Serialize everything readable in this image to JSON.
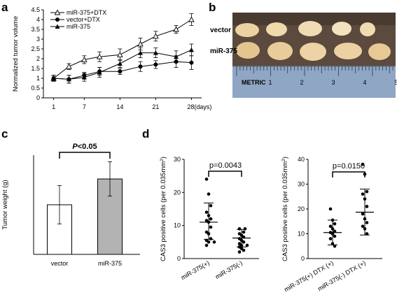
{
  "panels": {
    "a": "a",
    "b": "b",
    "c": "c",
    "d": "d"
  },
  "photo": {
    "row1_label": "vector",
    "row2_label": "miR-375",
    "ruler_text": "METRIC",
    "ruler_numbers": [
      "1",
      "2",
      "3",
      "4",
      "5"
    ],
    "colors": {
      "background": "#5b4a3d",
      "tumor": "#ecd2a3",
      "ruler": "#8fa6c4"
    }
  },
  "chart_data": [
    {
      "id": "a",
      "type": "line",
      "ylabel": "Normalized tumor volume",
      "xlabel": "",
      "x": [
        1,
        4,
        7,
        10,
        14,
        18,
        21,
        25,
        28
      ],
      "xticks": [
        "1",
        "7",
        "14",
        "21",
        "28(days)"
      ],
      "xtick_values": [
        1,
        7,
        14,
        21,
        28
      ],
      "yticks": [
        "0",
        "0.5",
        "1",
        "1.5",
        "2",
        "2.5",
        "3",
        "3.5",
        "4",
        "4.5"
      ],
      "xlim": [
        -1,
        30
      ],
      "ylim": [
        0,
        4.5
      ],
      "series": [
        {
          "name": "miR-375+DTX",
          "marker": "triangle-open",
          "values": [
            1.0,
            1.6,
            1.95,
            2.1,
            2.2,
            2.75,
            3.15,
            3.5,
            4.0
          ],
          "errors": [
            0.15,
            0.15,
            0.2,
            0.25,
            0.3,
            0.3,
            0.25,
            0.2,
            0.3
          ]
        },
        {
          "name": "vector+DTX",
          "marker": "circle",
          "values": [
            1.0,
            0.95,
            1.15,
            1.35,
            1.35,
            1.6,
            1.7,
            1.85,
            1.8
          ],
          "errors": [
            0.15,
            0.2,
            0.15,
            0.2,
            0.15,
            0.25,
            0.2,
            0.3,
            0.35
          ]
        },
        {
          "name": "miR-375",
          "marker": "triangle",
          "values": [
            1.0,
            0.95,
            1.05,
            1.3,
            1.75,
            2.3,
            2.3,
            2.1,
            2.45
          ],
          "errors": [
            0.15,
            0.2,
            0.2,
            0.25,
            0.2,
            0.25,
            0.25,
            0.3,
            0.3
          ]
        }
      ]
    },
    {
      "id": "c",
      "type": "bar",
      "ylabel": "Tumor weight (g)",
      "categories": [
        "vector",
        "miR-375"
      ],
      "values": [
        0.15,
        0.228
      ],
      "errors": [
        0.058,
        0.052
      ],
      "ylim": [
        0,
        0.3
      ],
      "colors": [
        "#ffffff",
        "#b3b3b3"
      ],
      "annotation": {
        "italic": "P",
        "text": "<0.05"
      }
    },
    {
      "id": "d1",
      "type": "scatter",
      "ylabel": "CAS3 positive cells (per 0.035mm",
      "ylabel_sup": "2",
      "ylabel_end": ")",
      "categories": [
        "miR-375(+)",
        "miR-375(-)"
      ],
      "yticks": [
        "0",
        "10",
        "20",
        "30"
      ],
      "ylim": [
        0,
        30
      ],
      "groups": [
        {
          "values": [
            24,
            19.5,
            16,
            14,
            13,
            12,
            11.5,
            11,
            9.5,
            8,
            7.5,
            6,
            5.5,
            5,
            5,
            4
          ],
          "mean": 11,
          "sd_low": 5.8,
          "sd_high": 16.8
        },
        {
          "values": [
            9,
            9,
            8,
            7.5,
            7,
            6.5,
            6,
            5.5,
            5,
            4.5,
            4,
            4,
            3.5,
            3,
            2.5,
            2
          ],
          "mean": 6.2,
          "sd_low": 3.5,
          "sd_high": 8.8
        }
      ],
      "pvalue": "p=0.0043"
    },
    {
      "id": "d2",
      "type": "scatter",
      "ylabel": "CAS3 positive cells (per 0.035mm",
      "ylabel_sup": "2",
      "ylabel_end": ")",
      "categories": [
        "miR-375(+) DTX (+)",
        "miR-375(-) DTX (+)"
      ],
      "yticks": [
        "0",
        "10",
        "20",
        "30",
        "40"
      ],
      "ylim": [
        0,
        40
      ],
      "groups": [
        {
          "values": [
            20,
            15.5,
            14,
            13,
            12,
            11,
            10.5,
            10,
            9,
            8,
            6,
            5
          ],
          "mean": 10.5,
          "sd_low": 5.5,
          "sd_high": 15.5
        },
        {
          "values": [
            38,
            34,
            27,
            26,
            24,
            21,
            18,
            16,
            14.5,
            13,
            12,
            10
          ],
          "mean": 18.7,
          "sd_low": 9.5,
          "sd_high": 28
        }
      ],
      "pvalue": "p=0.0150"
    }
  ]
}
